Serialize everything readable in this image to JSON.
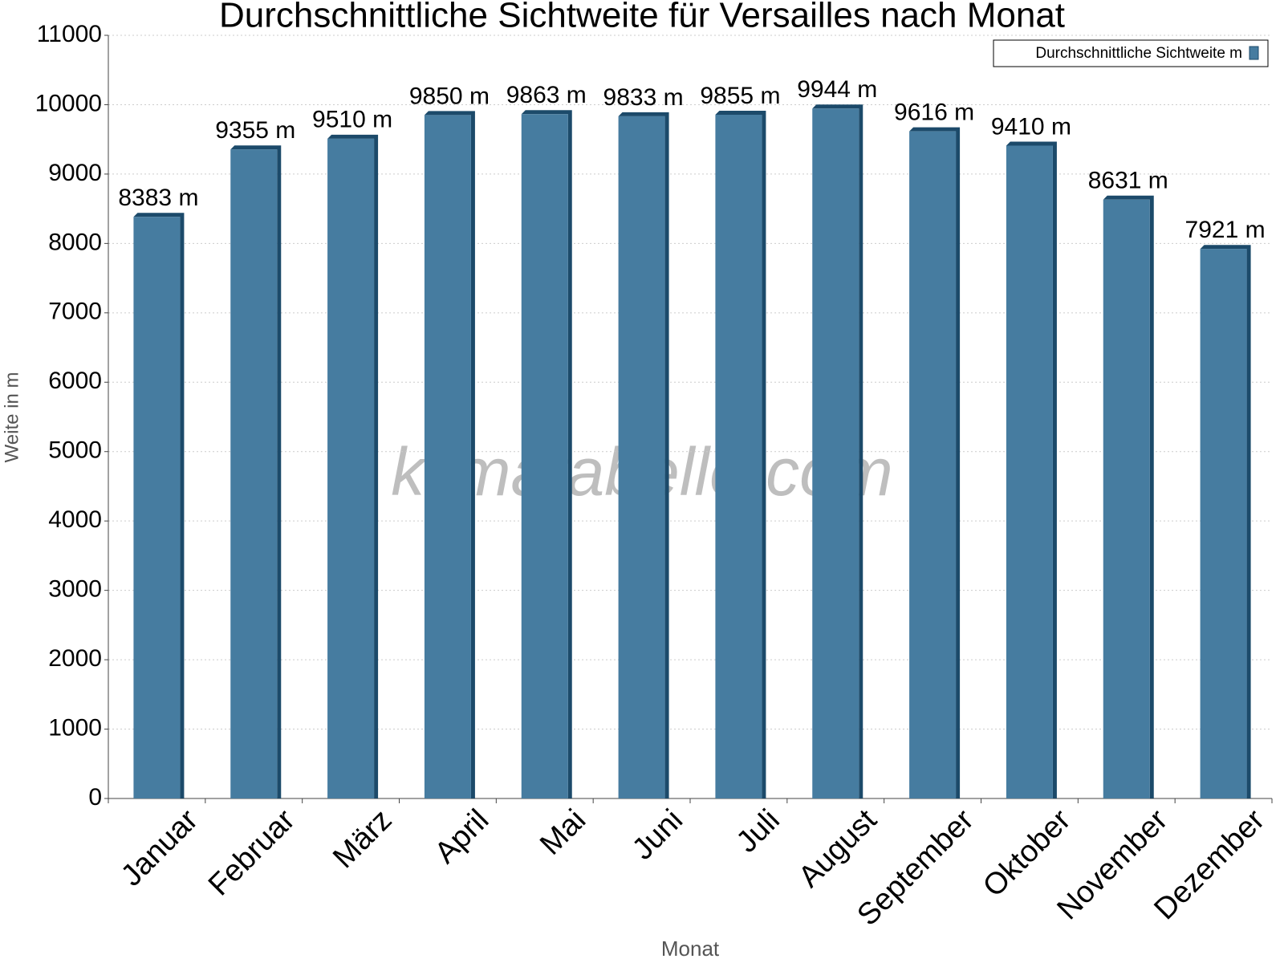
{
  "chart_data": {
    "type": "bar",
    "title": "Durchschnittliche Sichtweite für Versailles nach Monat",
    "x_label": "Monat",
    "y_label": "Weite in m",
    "watermark": "klimatabelle.com",
    "categories": [
      "Januar",
      "Februar",
      "März",
      "April",
      "Mai",
      "Juni",
      "Juli",
      "August",
      "September",
      "Oktober",
      "November",
      "Dezember"
    ],
    "series": [
      {
        "name": "Durchschnittliche Sichtweite m",
        "color": "#467ca0",
        "values": [
          8383,
          9355,
          9510,
          9850,
          9863,
          9833,
          9855,
          9944,
          9616,
          9410,
          8631,
          7921
        ],
        "value_labels": [
          "8383 m",
          "9355 m",
          "9510 m",
          "9850 m",
          "9863 m",
          "9833 m",
          "9855 m",
          "9944 m",
          "9616 m",
          "9410 m",
          "8631 m",
          "7921 m"
        ]
      }
    ],
    "ylim": [
      0,
      11000
    ],
    "yticks": [
      0,
      1000,
      2000,
      3000,
      4000,
      5000,
      6000,
      7000,
      8000,
      9000,
      10000,
      11000
    ],
    "grid": true,
    "legend": "top-right"
  }
}
